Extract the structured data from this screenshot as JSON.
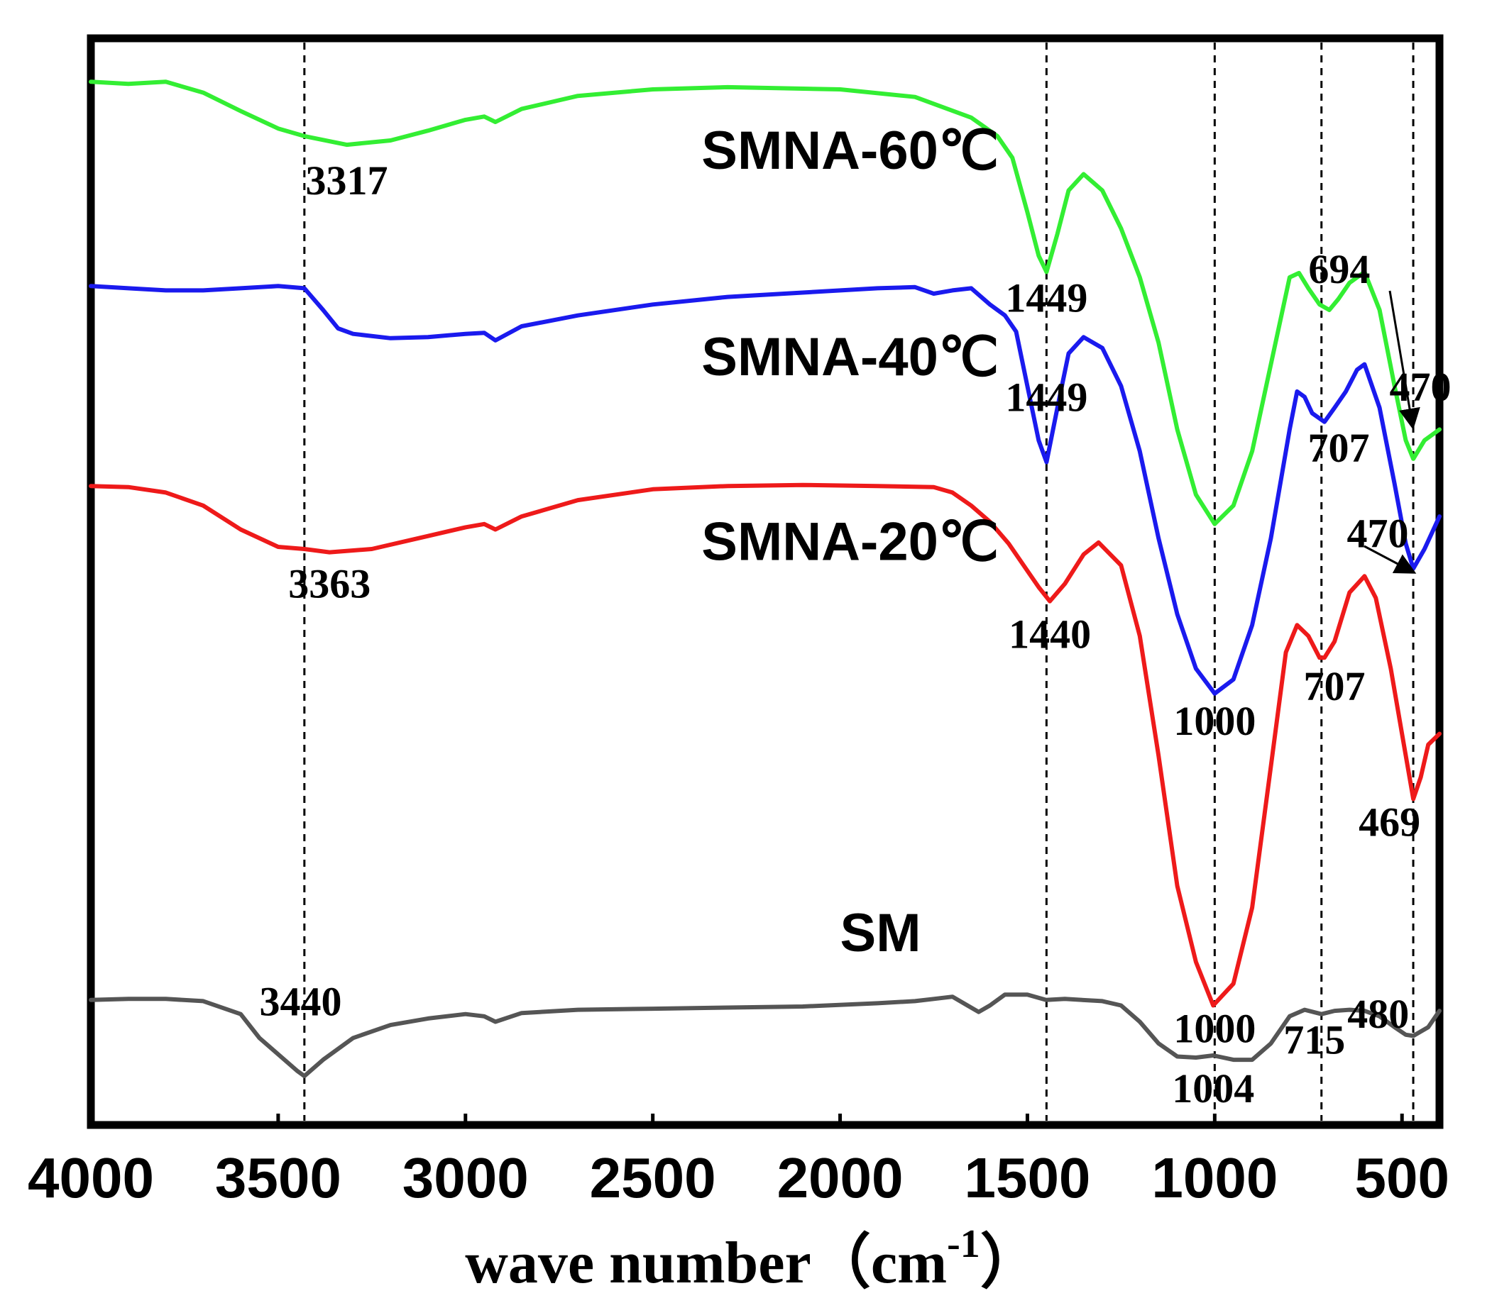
{
  "chart_data": {
    "type": "line",
    "title": "",
    "xlabel": "wave number（cm",
    "xlabel_sup": "-1",
    "xlabel_close": "）",
    "ylabel": "",
    "xlim": [
      4000,
      400
    ],
    "ylim": [
      0,
      100
    ],
    "x_ticks": [
      4000,
      3500,
      3000,
      2500,
      2000,
      1500,
      1000,
      500
    ],
    "x_tick_labels": [
      "4000",
      "3500",
      "3000",
      "2500",
      "2000",
      "1500",
      "1000",
      "500"
    ],
    "reference_lines_x": [
      3430,
      1449,
      1000,
      715,
      470
    ],
    "series": [
      {
        "name": "SMNA-60℃",
        "color": "#33ee33",
        "label_pos": [
          2370,
          88
        ],
        "points": [
          [
            4000,
            96.0
          ],
          [
            3900,
            95.8
          ],
          [
            3800,
            96.0
          ],
          [
            3700,
            95.0
          ],
          [
            3600,
            93.3
          ],
          [
            3500,
            91.7
          ],
          [
            3430,
            91.0
          ],
          [
            3317,
            90.2
          ],
          [
            3200,
            90.6
          ],
          [
            3100,
            91.5
          ],
          [
            3000,
            92.5
          ],
          [
            2950,
            92.8
          ],
          [
            2920,
            92.3
          ],
          [
            2850,
            93.5
          ],
          [
            2700,
            94.7
          ],
          [
            2500,
            95.3
          ],
          [
            2300,
            95.5
          ],
          [
            2000,
            95.3
          ],
          [
            1800,
            94.6
          ],
          [
            1650,
            92.7
          ],
          [
            1580,
            91.0
          ],
          [
            1540,
            89.0
          ],
          [
            1500,
            84.0
          ],
          [
            1470,
            80.0
          ],
          [
            1449,
            78.5
          ],
          [
            1420,
            82.0
          ],
          [
            1390,
            86.0
          ],
          [
            1350,
            87.5
          ],
          [
            1300,
            86.0
          ],
          [
            1250,
            82.5
          ],
          [
            1200,
            78.0
          ],
          [
            1150,
            72.0
          ],
          [
            1100,
            64.0
          ],
          [
            1050,
            58.0
          ],
          [
            1000,
            55.3
          ],
          [
            950,
            57.0
          ],
          [
            900,
            62.0
          ],
          [
            850,
            70.0
          ],
          [
            800,
            78.0
          ],
          [
            775,
            78.4
          ],
          [
            750,
            77.0
          ],
          [
            720,
            75.5
          ],
          [
            694,
            75.0
          ],
          [
            670,
            76.0
          ],
          [
            640,
            77.5
          ],
          [
            600,
            78.5
          ],
          [
            560,
            75.0
          ],
          [
            520,
            68.0
          ],
          [
            490,
            63.0
          ],
          [
            470,
            61.3
          ],
          [
            440,
            63.0
          ],
          [
            400,
            64.0
          ]
        ],
        "peaks": [
          {
            "label": "3317",
            "x": 3317
          },
          {
            "label": "1449",
            "x": 1449
          },
          {
            "label": "694",
            "x": 694
          },
          {
            "label": "470",
            "x": 470
          }
        ]
      },
      {
        "name": "SMNA-40℃",
        "color": "#1a1aee",
        "label_pos": [
          2370,
          69
        ],
        "points": [
          [
            4000,
            77.2
          ],
          [
            3900,
            77.0
          ],
          [
            3800,
            76.8
          ],
          [
            3700,
            76.8
          ],
          [
            3600,
            77.0
          ],
          [
            3500,
            77.2
          ],
          [
            3430,
            77.0
          ],
          [
            3380,
            75.0
          ],
          [
            3340,
            73.3
          ],
          [
            3300,
            72.8
          ],
          [
            3200,
            72.4
          ],
          [
            3100,
            72.5
          ],
          [
            3000,
            72.8
          ],
          [
            2950,
            72.9
          ],
          [
            2920,
            72.2
          ],
          [
            2850,
            73.5
          ],
          [
            2700,
            74.5
          ],
          [
            2500,
            75.5
          ],
          [
            2300,
            76.2
          ],
          [
            2100,
            76.6
          ],
          [
            1900,
            77.0
          ],
          [
            1800,
            77.1
          ],
          [
            1750,
            76.5
          ],
          [
            1700,
            76.8
          ],
          [
            1650,
            77.0
          ],
          [
            1600,
            75.5
          ],
          [
            1560,
            74.5
          ],
          [
            1530,
            73.0
          ],
          [
            1500,
            68.0
          ],
          [
            1470,
            63.0
          ],
          [
            1449,
            61.0
          ],
          [
            1420,
            66.0
          ],
          [
            1390,
            71.0
          ],
          [
            1350,
            72.5
          ],
          [
            1300,
            71.5
          ],
          [
            1250,
            68.0
          ],
          [
            1200,
            62.0
          ],
          [
            1150,
            54.0
          ],
          [
            1100,
            47.0
          ],
          [
            1050,
            42.0
          ],
          [
            1000,
            39.7
          ],
          [
            950,
            41.0
          ],
          [
            900,
            46.0
          ],
          [
            850,
            54.0
          ],
          [
            800,
            64.0
          ],
          [
            780,
            67.5
          ],
          [
            760,
            67.0
          ],
          [
            740,
            65.5
          ],
          [
            707,
            64.7
          ],
          [
            680,
            66.0
          ],
          [
            650,
            67.5
          ],
          [
            620,
            69.5
          ],
          [
            600,
            70.0
          ],
          [
            560,
            66.0
          ],
          [
            520,
            59.0
          ],
          [
            490,
            53.5
          ],
          [
            470,
            51.2
          ],
          [
            440,
            53.0
          ],
          [
            400,
            56.0
          ]
        ],
        "peaks": [
          {
            "label": "1449",
            "x": 1449
          },
          {
            "label": "1000",
            "x": 1000
          },
          {
            "label": "707",
            "x": 707
          },
          {
            "label": "470",
            "x": 470
          }
        ]
      },
      {
        "name": "SMNA-20℃",
        "color": "#ee1a1a",
        "label_pos": [
          2370,
          52
        ],
        "points": [
          [
            4000,
            58.8
          ],
          [
            3900,
            58.7
          ],
          [
            3800,
            58.2
          ],
          [
            3700,
            57.0
          ],
          [
            3600,
            54.8
          ],
          [
            3500,
            53.2
          ],
          [
            3430,
            53.0
          ],
          [
            3363,
            52.7
          ],
          [
            3250,
            53.0
          ],
          [
            3100,
            54.2
          ],
          [
            3000,
            55.0
          ],
          [
            2950,
            55.3
          ],
          [
            2920,
            54.8
          ],
          [
            2850,
            56.0
          ],
          [
            2700,
            57.5
          ],
          [
            2500,
            58.5
          ],
          [
            2300,
            58.8
          ],
          [
            2100,
            58.9
          ],
          [
            1900,
            58.8
          ],
          [
            1750,
            58.7
          ],
          [
            1700,
            58.2
          ],
          [
            1650,
            57.0
          ],
          [
            1600,
            55.5
          ],
          [
            1550,
            53.5
          ],
          [
            1500,
            51.0
          ],
          [
            1470,
            49.5
          ],
          [
            1440,
            48.2
          ],
          [
            1400,
            49.8
          ],
          [
            1350,
            52.5
          ],
          [
            1310,
            53.6
          ],
          [
            1250,
            51.5
          ],
          [
            1200,
            45.0
          ],
          [
            1150,
            34.0
          ],
          [
            1100,
            22.0
          ],
          [
            1050,
            15.0
          ],
          [
            1004,
            11.0
          ],
          [
            950,
            13.0
          ],
          [
            900,
            20.0
          ],
          [
            850,
            33.0
          ],
          [
            810,
            43.5
          ],
          [
            780,
            46.0
          ],
          [
            750,
            45.0
          ],
          [
            720,
            43.0
          ],
          [
            707,
            43.0
          ],
          [
            680,
            44.5
          ],
          [
            640,
            49.0
          ],
          [
            600,
            50.5
          ],
          [
            570,
            48.5
          ],
          [
            530,
            42.0
          ],
          [
            500,
            36.0
          ],
          [
            470,
            30.0
          ],
          [
            450,
            32.0
          ],
          [
            430,
            35.0
          ],
          [
            400,
            36.0
          ]
        ],
        "peaks": [
          {
            "label": "3363",
            "x": 3363
          },
          {
            "label": "1440",
            "x": 1440
          },
          {
            "label": "1000",
            "x": 1000
          },
          {
            "label": "707",
            "x": 707
          },
          {
            "label": "469",
            "x": 469
          }
        ]
      },
      {
        "name": "SM",
        "color": "#555555",
        "label_pos": [
          2000,
          16
        ],
        "points": [
          [
            4000,
            11.5
          ],
          [
            3900,
            11.6
          ],
          [
            3800,
            11.6
          ],
          [
            3700,
            11.4
          ],
          [
            3600,
            10.2
          ],
          [
            3550,
            8.0
          ],
          [
            3500,
            6.5
          ],
          [
            3450,
            5.0
          ],
          [
            3430,
            4.5
          ],
          [
            3380,
            6.0
          ],
          [
            3300,
            8.0
          ],
          [
            3200,
            9.2
          ],
          [
            3100,
            9.8
          ],
          [
            3000,
            10.2
          ],
          [
            2950,
            10.0
          ],
          [
            2920,
            9.5
          ],
          [
            2850,
            10.3
          ],
          [
            2700,
            10.6
          ],
          [
            2500,
            10.7
          ],
          [
            2300,
            10.8
          ],
          [
            2100,
            10.9
          ],
          [
            1900,
            11.2
          ],
          [
            1800,
            11.4
          ],
          [
            1750,
            11.6
          ],
          [
            1700,
            11.8
          ],
          [
            1660,
            11.0
          ],
          [
            1630,
            10.4
          ],
          [
            1600,
            11.0
          ],
          [
            1560,
            12.0
          ],
          [
            1500,
            12.0
          ],
          [
            1450,
            11.5
          ],
          [
            1400,
            11.6
          ],
          [
            1300,
            11.4
          ],
          [
            1250,
            11.0
          ],
          [
            1200,
            9.5
          ],
          [
            1150,
            7.5
          ],
          [
            1100,
            6.3
          ],
          [
            1050,
            6.2
          ],
          [
            1004,
            6.4
          ],
          [
            950,
            6.0
          ],
          [
            900,
            6.0
          ],
          [
            850,
            7.5
          ],
          [
            800,
            10.0
          ],
          [
            760,
            10.6
          ],
          [
            715,
            10.2
          ],
          [
            680,
            10.5
          ],
          [
            640,
            10.6
          ],
          [
            600,
            10.5
          ],
          [
            560,
            10.0
          ],
          [
            520,
            9.0
          ],
          [
            490,
            8.3
          ],
          [
            470,
            8.2
          ],
          [
            430,
            9.0
          ],
          [
            400,
            10.5
          ]
        ],
        "peaks": [
          {
            "label": "3440",
            "x": 3440
          },
          {
            "label": "1004",
            "x": 1004
          },
          {
            "label": "715",
            "x": 715
          },
          {
            "label": "480",
            "x": 480
          }
        ]
      }
    ]
  }
}
